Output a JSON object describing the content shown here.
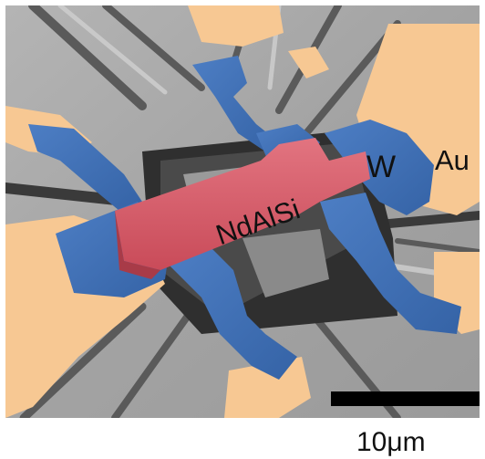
{
  "image": {
    "description_colors": {
      "background": "#a6a6a6",
      "gold_false_color": "#f7c893",
      "tungsten_false_color": "#3f6fb3",
      "sample_false_color": "#d95d6a"
    }
  },
  "labels": {
    "gold": "Au",
    "tungsten": "W",
    "sample": "NdAlSi"
  },
  "scale_bar": {
    "text": "10μm"
  }
}
